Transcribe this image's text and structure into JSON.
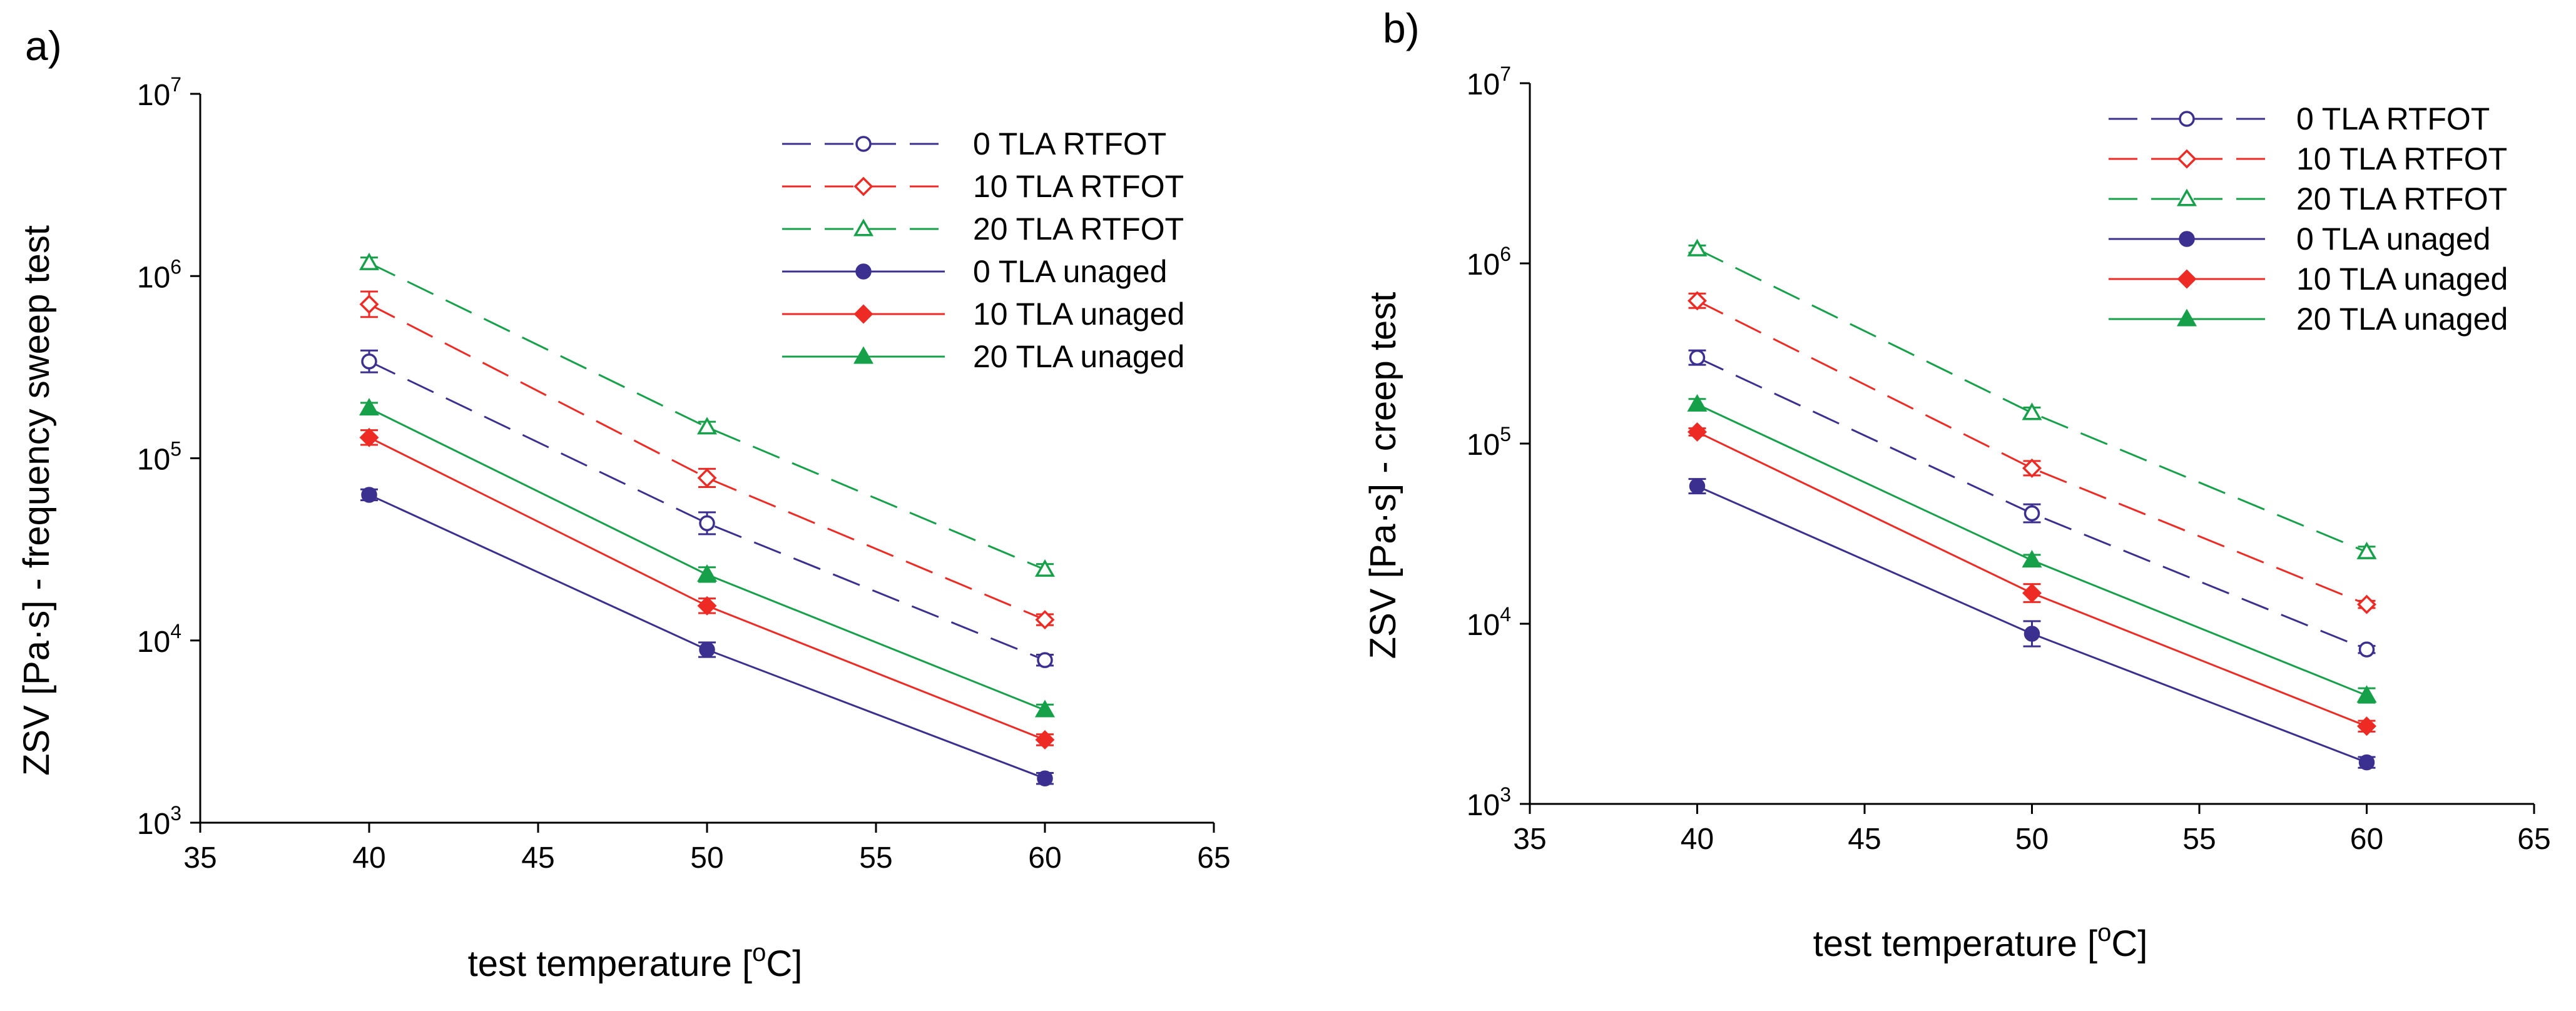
{
  "colors": {
    "0_TLA": "#3b2f8f",
    "10_TLA": "#ee2a24",
    "20_TLA": "#17a04a",
    "axis": "#000000"
  },
  "chart_data": [
    {
      "type": "line",
      "panel_label": "a)",
      "xlabel": "test temperature [",
      "xlabel_sup": "o",
      "xlabel_unit": "C]",
      "ylabel": "ZSV [Pa·s] - frequency sweep test",
      "yscale": "log",
      "xlim": [
        35,
        65
      ],
      "ylim": [
        1000,
        10000000
      ],
      "x_ticks": [
        35,
        40,
        45,
        50,
        55,
        60,
        65
      ],
      "y_ticks": [
        {
          "value": 1000,
          "base": "10",
          "exp": "3"
        },
        {
          "value": 10000,
          "base": "10",
          "exp": "4"
        },
        {
          "value": 100000,
          "base": "10",
          "exp": "5"
        },
        {
          "value": 1000000,
          "base": "10",
          "exp": "6"
        },
        {
          "value": 10000000,
          "base": "10",
          "exp": "7"
        }
      ],
      "legend_position": "top-right",
      "series": [
        {
          "name": "0 TLA RTFOT",
          "color_key": "0_TLA",
          "dash": true,
          "marker": "circle-open",
          "x": [
            40,
            50,
            60
          ],
          "values": [
            340000,
            44000,
            7800
          ],
          "err": [
            0.06,
            0.06,
            0.03
          ]
        },
        {
          "name": "10 TLA RTFOT",
          "color_key": "10_TLA",
          "dash": true,
          "marker": "diamond-open",
          "x": [
            40,
            50,
            60
          ],
          "values": [
            700000,
            78000,
            13000
          ],
          "err": [
            0.07,
            0.05,
            0.03
          ]
        },
        {
          "name": "20 TLA RTFOT",
          "color_key": "20_TLA",
          "dash": true,
          "marker": "triangle-open",
          "x": [
            40,
            50,
            60
          ],
          "values": [
            1180000,
            148000,
            24500
          ],
          "err": [
            0.03,
            0.03,
            0.03
          ]
        },
        {
          "name": "0 TLA unaged",
          "color_key": "0_TLA",
          "dash": false,
          "marker": "circle-filled",
          "x": [
            40,
            50,
            60
          ],
          "values": [
            63000,
            8900,
            1750
          ],
          "err": [
            0.03,
            0.04,
            0.03
          ]
        },
        {
          "name": "10 TLA unaged",
          "color_key": "10_TLA",
          "dash": false,
          "marker": "diamond-filled",
          "x": [
            40,
            50,
            60
          ],
          "values": [
            130000,
            15500,
            2850
          ],
          "err": [
            0.04,
            0.04,
            0.03
          ]
        },
        {
          "name": "20 TLA unaged",
          "color_key": "20_TLA",
          "dash": false,
          "marker": "triangle-filled",
          "x": [
            40,
            50,
            60
          ],
          "values": [
            188000,
            23000,
            4150
          ],
          "err": [
            0.03,
            0.04,
            0.03
          ]
        }
      ]
    },
    {
      "type": "line",
      "panel_label": "b)",
      "xlabel": "test temperature [",
      "xlabel_sup": "o",
      "xlabel_unit": "C]",
      "ylabel": "ZSV [Pa·s] - creep test",
      "yscale": "log",
      "xlim": [
        35,
        65
      ],
      "ylim": [
        1000,
        10000000
      ],
      "x_ticks": [
        35,
        40,
        45,
        50,
        55,
        60,
        65
      ],
      "y_ticks": [
        {
          "value": 1000,
          "base": "10",
          "exp": "3"
        },
        {
          "value": 10000,
          "base": "10",
          "exp": "4"
        },
        {
          "value": 100000,
          "base": "10",
          "exp": "5"
        },
        {
          "value": 1000000,
          "base": "10",
          "exp": "6"
        },
        {
          "value": 10000000,
          "base": "10",
          "exp": "7"
        }
      ],
      "legend_position": "top-right",
      "series": [
        {
          "name": "0 TLA RTFOT",
          "color_key": "0_TLA",
          "dash": true,
          "marker": "circle-open",
          "x": [
            40,
            50,
            60
          ],
          "values": [
            300000,
            41000,
            7200
          ],
          "err": [
            0.04,
            0.05,
            0.02
          ]
        },
        {
          "name": "10 TLA RTFOT",
          "color_key": "10_TLA",
          "dash": true,
          "marker": "diamond-open",
          "x": [
            40,
            50,
            60
          ],
          "values": [
            620000,
            73000,
            12800
          ],
          "err": [
            0.04,
            0.04,
            0.02
          ]
        },
        {
          "name": "20 TLA RTFOT",
          "color_key": "20_TLA",
          "dash": true,
          "marker": "triangle-open",
          "x": [
            40,
            50,
            60
          ],
          "values": [
            1200000,
            148000,
            25000
          ],
          "err": [
            0.02,
            0.03,
            0.03
          ]
        },
        {
          "name": "0 TLA unaged",
          "color_key": "0_TLA",
          "dash": false,
          "marker": "circle-filled",
          "x": [
            40,
            50,
            60
          ],
          "values": [
            58000,
            8800,
            1700
          ],
          "err": [
            0.04,
            0.07,
            0.03
          ]
        },
        {
          "name": "10 TLA unaged",
          "color_key": "10_TLA",
          "dash": false,
          "marker": "diamond-filled",
          "x": [
            40,
            50,
            60
          ],
          "values": [
            116000,
            14800,
            2700
          ],
          "err": [
            0.02,
            0.05,
            0.03
          ]
        },
        {
          "name": "20 TLA unaged",
          "color_key": "20_TLA",
          "dash": false,
          "marker": "triangle-filled",
          "x": [
            40,
            50,
            60
          ],
          "values": [
            165000,
            22500,
            4000
          ],
          "err": [
            0.03,
            0.03,
            0.04
          ]
        }
      ]
    }
  ]
}
